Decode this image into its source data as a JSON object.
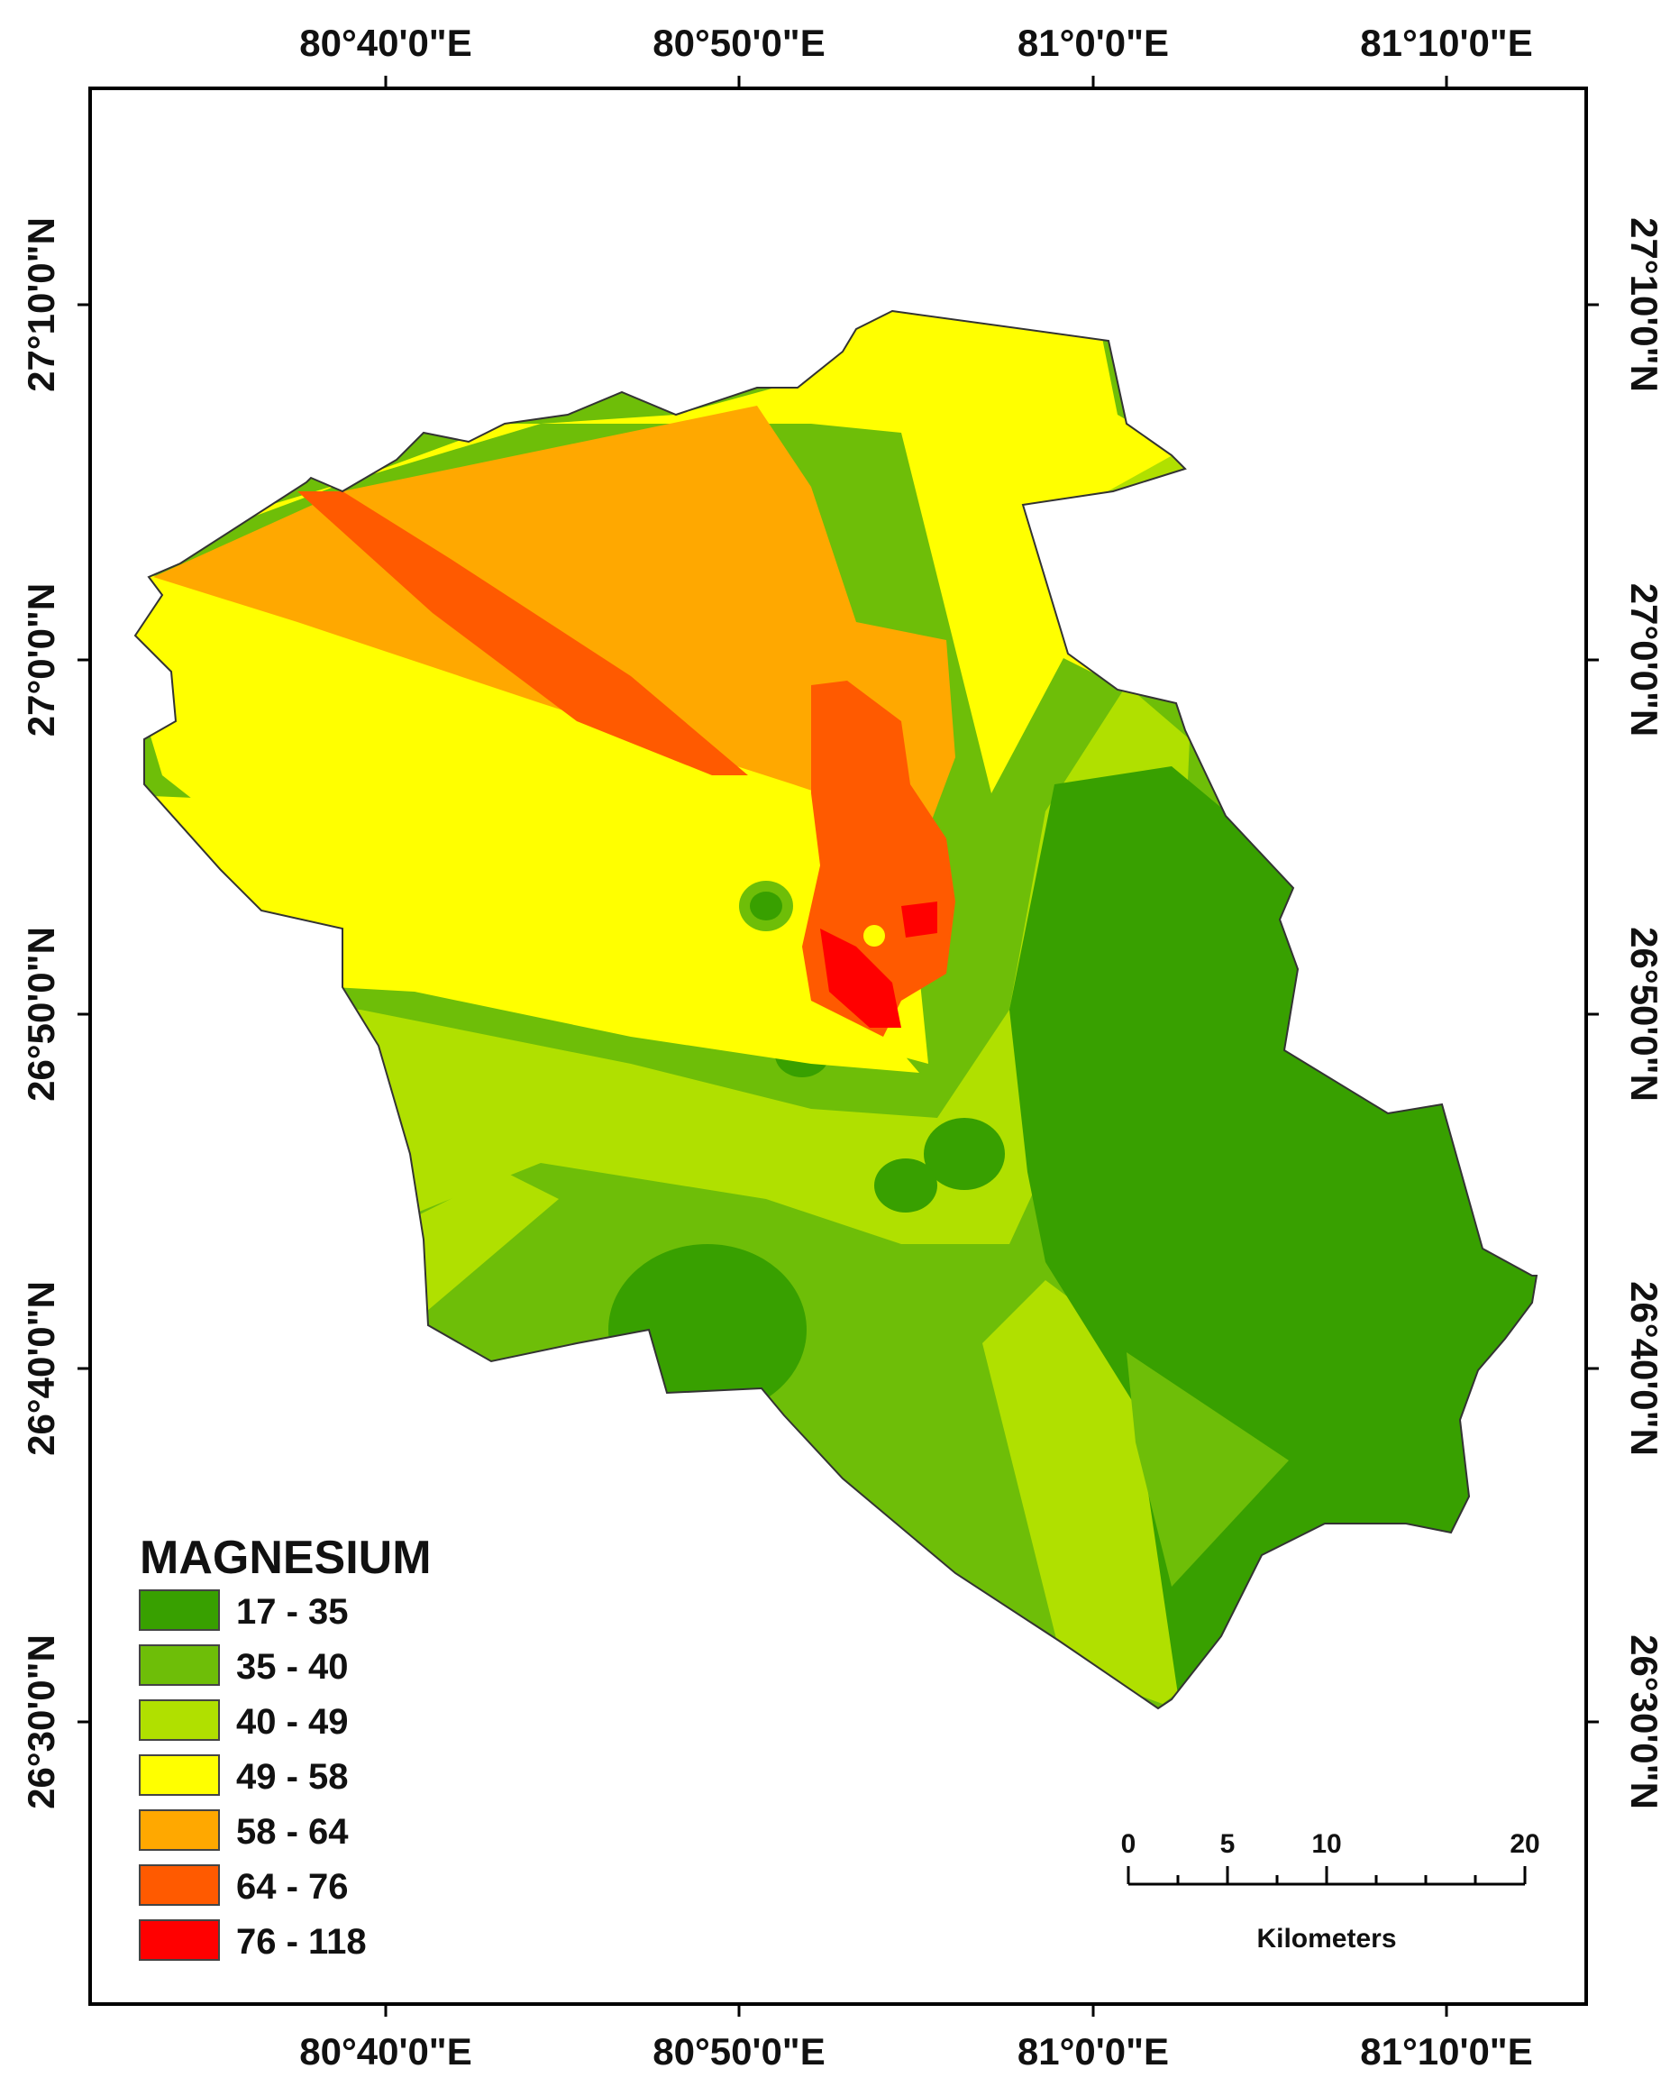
{
  "map": {
    "lon_labels": [
      "80°40'0\"E",
      "80°50'0\"E",
      "81°0'0\"E",
      "81°10'0\"E"
    ],
    "lat_labels": [
      "27°10'0\"N",
      "27°0'0\"N",
      "26°50'0\"N",
      "26°40'0\"N",
      "26°30'0\"N"
    ],
    "legend": {
      "title": "MAGNESIUM",
      "classes": [
        {
          "label": "17 - 35",
          "color": "#38a000"
        },
        {
          "label": "35 - 40",
          "color": "#6ebe08"
        },
        {
          "label": "40 - 49",
          "color": "#b0e000"
        },
        {
          "label": "49 - 58",
          "color": "#ffff00"
        },
        {
          "label": "58 - 64",
          "color": "#ffa800"
        },
        {
          "label": "64 - 76",
          "color": "#ff5a00"
        },
        {
          "label": "76 - 118",
          "color": "#ff0000"
        }
      ]
    },
    "scale_bar": {
      "ticks": [
        "0",
        "5",
        "10",
        "20"
      ],
      "unit": "Kilometers"
    }
  }
}
